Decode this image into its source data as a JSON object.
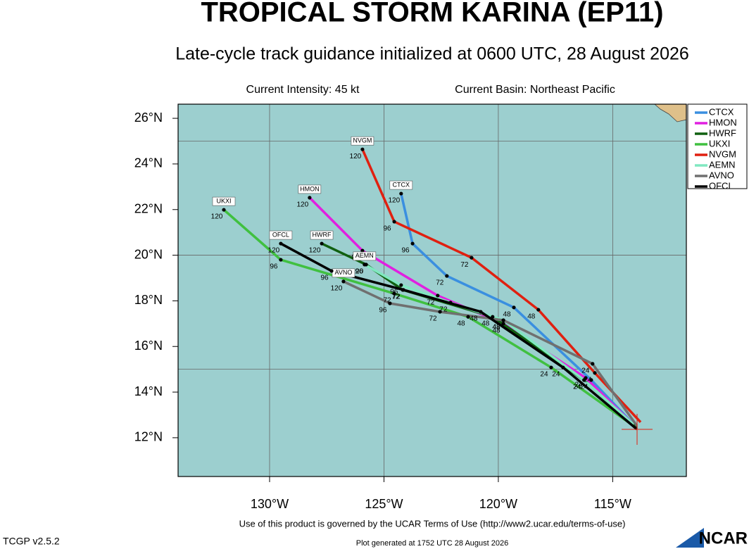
{
  "chart_data": {
    "type": "track",
    "title": "TROPICAL STORM KARINA (EP11)",
    "subtitle": "Late-cycle track guidance initialized at 0600 UTC, 28 August 2026",
    "intensity": "Current Intensity: 45 kt",
    "basin": "Current Basin: Northeast Pacific",
    "terms": "Use of this product is governed by the UCAR Terms of Use (http://www2.ucar.edu/terms-of-use)",
    "version": "TCGP v2.5.2",
    "generated": "Plot generated at 1752 UTC  28 August 2026",
    "logo": "NCAR",
    "xlim": [
      -134,
      -111.78
    ],
    "ylim": [
      10.3,
      26.62
    ],
    "xticks": [
      {
        "value": -130,
        "label": "130°W"
      },
      {
        "value": -125,
        "label": "125°W"
      },
      {
        "value": -120,
        "label": "120°W"
      },
      {
        "value": -115,
        "label": "115°W"
      }
    ],
    "yticks": [
      {
        "value": 12,
        "label": "12°N"
      },
      {
        "value": 14,
        "label": "14°N"
      },
      {
        "value": 16,
        "label": "16°N"
      },
      {
        "value": 18,
        "label": "18°N"
      },
      {
        "value": 20,
        "label": "20°N"
      },
      {
        "value": 22,
        "label": "22°N"
      },
      {
        "value": 24,
        "label": "24°N"
      },
      {
        "value": 26,
        "label": "26°N"
      }
    ],
    "lat_grid": [
      15,
      20,
      25
    ],
    "hours": [
      0,
      24,
      48,
      72,
      96,
      120
    ],
    "series": [
      {
        "name": "CTCX",
        "color": "#3a8fe0",
        "x": [
          -113.94,
          -115.94,
          -119.32,
          -122.25,
          -123.75,
          -124.25
        ],
        "values": [
          12.43,
          14.53,
          17.71,
          19.09,
          20.51,
          22.7
        ]
      },
      {
        "name": "HMON",
        "color": "#e020e0",
        "x": [
          -113.94,
          -116.18,
          -119.78,
          -122.65,
          -125.94,
          -128.25
        ],
        "values": [
          12.43,
          14.62,
          17.0,
          18.23,
          20.2,
          22.52
        ]
      },
      {
        "name": "HWRF",
        "color": "#106010",
        "x": [
          -113.94,
          -116.25,
          -120.25,
          -124.18,
          -125.78,
          -127.72
        ],
        "values": [
          12.43,
          14.53,
          17.3,
          18.48,
          19.59,
          20.51
        ]
      },
      {
        "name": "UKXI",
        "color": "#40c040",
        "x": [
          -114.09,
          -117.69,
          -121.32,
          -124.55,
          -129.51,
          -132.0
        ],
        "values": [
          12.52,
          15.08,
          17.3,
          18.32,
          19.8,
          21.99
        ]
      },
      {
        "name": "NVGM",
        "color": "#e02010",
        "x": [
          -113.78,
          -115.78,
          -118.25,
          -121.17,
          -124.55,
          -125.94
        ],
        "values": [
          12.68,
          14.84,
          17.61,
          19.89,
          21.47,
          24.64
        ]
      },
      {
        "name": "AEMN",
        "color": "#80e8c0",
        "x": [
          -114.09,
          -116.25,
          -119.78,
          -122.09,
          -124.25,
          -125.85
        ],
        "values": [
          12.58,
          14.53,
          17.15,
          17.92,
          18.69,
          19.59
        ]
      },
      {
        "name": "AVNO",
        "color": "#707070",
        "x": [
          -113.94,
          -115.88,
          -119.78,
          -122.55,
          -124.74,
          -126.77
        ],
        "values": [
          12.52,
          15.24,
          17.15,
          17.52,
          17.89,
          18.85
        ]
      },
      {
        "name": "OFCL",
        "color": "#000000",
        "x": [
          -113.94,
          -117.17,
          -120.77,
          -124.15,
          -127.29,
          -129.51
        ],
        "values": [
          12.37,
          15.08,
          17.52,
          18.48,
          19.31,
          20.51
        ]
      }
    ]
  }
}
